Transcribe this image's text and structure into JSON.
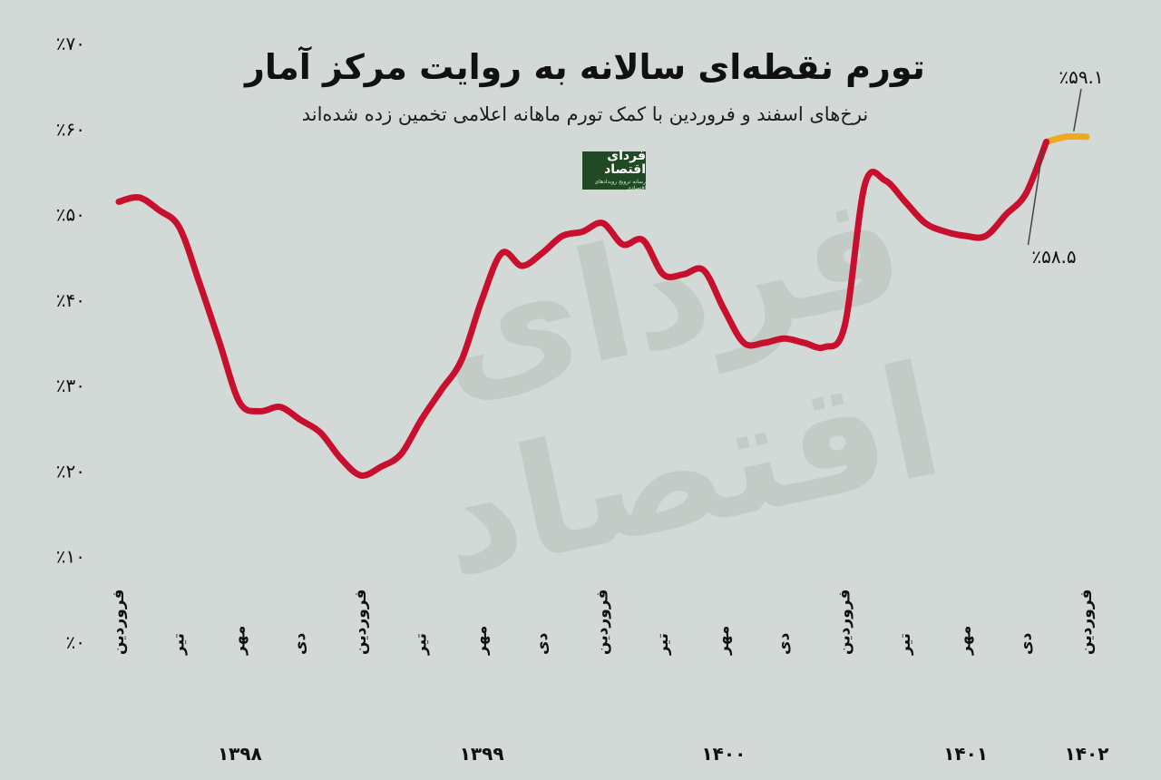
{
  "header": {
    "title": "تورم نقطه‌ای سالانه به روایت مرکز آمار",
    "subtitle": "نرخ‌های اسفند و فروردین با کمک تورم ماهانه اعلامی تخمین زده شده‌اند"
  },
  "logo": {
    "text": "فردای اقتصاد",
    "subtext": "رسانه ترویج رویدادهای اقتصادی"
  },
  "watermark": "فردای اقتصاد",
  "colors": {
    "background": "#d3d9d6",
    "actual_line": "#c8102e",
    "estimated_line": "#f0a81c",
    "text": "#111111"
  },
  "chart_data": {
    "type": "line",
    "ylim": [
      0,
      70
    ],
    "y_ticks": [
      {
        "value": 0,
        "label": "٪۰"
      },
      {
        "value": 10,
        "label": "٪۱۰"
      },
      {
        "value": 20,
        "label": "٪۲۰"
      },
      {
        "value": 30,
        "label": "٪۳۰"
      },
      {
        "value": 40,
        "label": "٪۴۰"
      },
      {
        "value": 50,
        "label": "٪۵۰"
      },
      {
        "value": 60,
        "label": "٪۶۰"
      },
      {
        "value": 70,
        "label": "٪۷۰"
      }
    ],
    "x_ticks": [
      {
        "index": 0,
        "label": "فروردین"
      },
      {
        "index": 3,
        "label": "تیر"
      },
      {
        "index": 6,
        "label": "مهر"
      },
      {
        "index": 9,
        "label": "دی"
      },
      {
        "index": 12,
        "label": "فروردین"
      },
      {
        "index": 15,
        "label": "تیر"
      },
      {
        "index": 18,
        "label": "مهر"
      },
      {
        "index": 21,
        "label": "دی"
      },
      {
        "index": 24,
        "label": "فروردین"
      },
      {
        "index": 27,
        "label": "تیر"
      },
      {
        "index": 30,
        "label": "مهر"
      },
      {
        "index": 33,
        "label": "دی"
      },
      {
        "index": 36,
        "label": "فروردین"
      },
      {
        "index": 39,
        "label": "تیر"
      },
      {
        "index": 42,
        "label": "مهر"
      },
      {
        "index": 45,
        "label": "دی"
      },
      {
        "index": 48,
        "label": "فروردین"
      }
    ],
    "years": [
      {
        "index": 6,
        "label": "۱۳۹۸"
      },
      {
        "index": 18,
        "label": "۱۳۹۹"
      },
      {
        "index": 30,
        "label": "۱۴۰۰"
      },
      {
        "index": 42,
        "label": "۱۴۰۱"
      },
      {
        "index": 48,
        "label": "۱۴۰۲"
      }
    ],
    "series": [
      {
        "values": [
          51.5,
          52,
          50.5,
          48.5,
          42,
          35,
          28,
          27,
          27.5,
          26,
          24.5,
          21.5,
          19.5,
          20.5,
          22,
          26,
          29.5,
          33,
          40,
          45.5,
          44,
          45.5,
          47.5,
          48,
          49,
          46.5,
          47,
          43,
          43,
          43.5,
          39,
          35,
          35,
          35.5,
          35,
          34.5,
          37,
          53.5,
          54,
          51.5,
          49,
          48,
          47.5,
          47.5,
          50,
          52.5,
          58.5,
          59.1,
          59.1
        ]
      }
    ],
    "estimated_from_index": 46,
    "annotations": [
      {
        "index": 46,
        "label": "٪۵۸.۵"
      },
      {
        "index": 47,
        "label": "٪۵۹.۱"
      }
    ]
  }
}
